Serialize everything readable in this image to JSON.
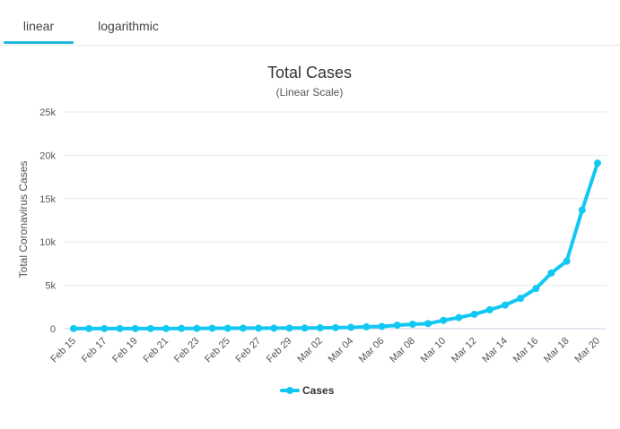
{
  "tabs": [
    {
      "label": "linear"
    },
    {
      "label": "logarithmic"
    }
  ],
  "accent_color": "#12c8f3",
  "chart_data": {
    "type": "line",
    "title": "Total Cases",
    "subtitle": "(Linear Scale)",
    "ylabel": "Total Coronavirus Cases",
    "xlabel": "",
    "ylim": [
      0,
      25000
    ],
    "y_ticks": [
      0,
      5000,
      10000,
      15000,
      20000,
      25000
    ],
    "y_tick_labels": [
      "0",
      "5k",
      "10k",
      "15k",
      "20k",
      "25k"
    ],
    "x": [
      "Feb 15",
      "Feb 16",
      "Feb 17",
      "Feb 18",
      "Feb 19",
      "Feb 20",
      "Feb 21",
      "Feb 22",
      "Feb 23",
      "Feb 24",
      "Feb 25",
      "Feb 26",
      "Feb 27",
      "Feb 28",
      "Feb 29",
      "Mar 01",
      "Mar 02",
      "Mar 03",
      "Mar 04",
      "Mar 05",
      "Mar 06",
      "Mar 07",
      "Mar 08",
      "Mar 09",
      "Mar 10",
      "Mar 11",
      "Mar 12",
      "Mar 13",
      "Mar 14",
      "Mar 15",
      "Mar 16",
      "Mar 17",
      "Mar 18",
      "Mar 19",
      "Mar 20"
    ],
    "x_tick_labels": [
      "Feb 15",
      "Feb 17",
      "Feb 19",
      "Feb 21",
      "Feb 23",
      "Feb 25",
      "Feb 27",
      "Feb 29",
      "Mar 02",
      "Mar 04",
      "Mar 06",
      "Mar 08",
      "Mar 10",
      "Mar 12",
      "Mar 14",
      "Mar 16",
      "Mar 18",
      "Mar 20"
    ],
    "grid": true,
    "legend_position": "bottom-center",
    "series": [
      {
        "name": "Cases",
        "color": "#12c8f3",
        "values": [
          15,
          15,
          15,
          15,
          15,
          15,
          15,
          35,
          35,
          53,
          53,
          59,
          60,
          62,
          68,
          74,
          98,
          118,
          149,
          217,
          262,
          402,
          518,
          583,
          959,
          1281,
          1663,
          2179,
          2726,
          3499,
          4632,
          6421,
          7786,
          13680,
          19101
        ]
      }
    ]
  }
}
